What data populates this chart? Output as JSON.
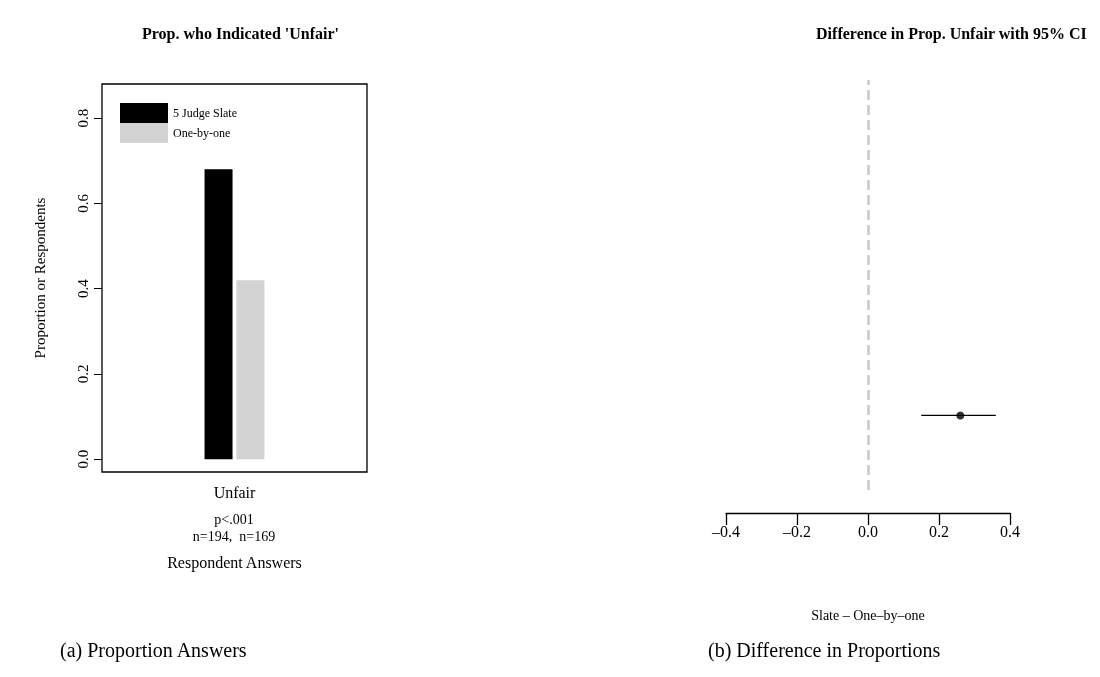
{
  "chart_data": [
    {
      "type": "bar",
      "title": "Prop. who Indicated 'Unfair'",
      "ylabel": "Proportion or Respondents",
      "xlabel": "Respondent Answers",
      "categories": [
        "Unfair"
      ],
      "series": [
        {
          "name": "5 Judge Slate",
          "color": "#000000",
          "values": [
            0.68
          ]
        },
        {
          "name": "One-by-one",
          "color": "#d3d3d3",
          "values": [
            0.42
          ]
        }
      ],
      "ylim": [
        -0.03,
        0.88
      ],
      "yticks": [
        {
          "value": 0,
          "label": "0.0"
        },
        0.2,
        0.4,
        0.6,
        0.8
      ],
      "legend": "top left",
      "grid": false,
      "annotations": [
        "p<.001",
        "n=194,  n=169",
        "(a) Proportion Answers"
      ]
    },
    {
      "type": "scatter",
      "orientation": "horizontal",
      "title": "Difference in Prop. Unfair with 95% CI",
      "xlabel": "Slate – One–by–one",
      "categories": [
        null
      ],
      "values": [
        0.26
      ],
      "errors": [
        [
          0.15,
          0.36
        ]
      ],
      "color": "#000000",
      "marker": "circle",
      "xlim": [
        -0.4,
        0.4
      ],
      "xticks": [
        {
          "value": -0.4,
          "label": "–0.4"
        },
        {
          "value": -0.2,
          "label": "–0.2"
        },
        {
          "value": 0,
          "label": "0.0"
        },
        0.2,
        0.4
      ],
      "grid": false,
      "ref_lines": [
        {
          "axis": "x",
          "value": 0,
          "color": "#c8c8c8",
          "line_style": "dashed"
        }
      ],
      "annotations": [
        "(b) Difference in Proportions"
      ]
    }
  ]
}
